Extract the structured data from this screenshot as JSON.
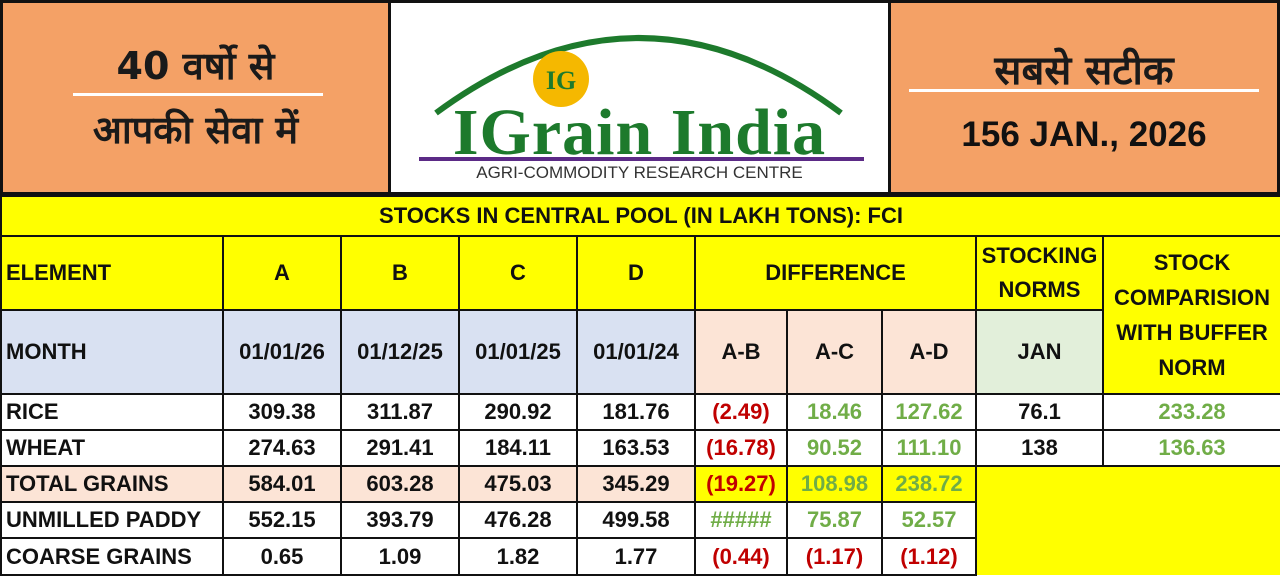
{
  "header": {
    "left_line1": "40 वर्षो से",
    "left_line2": "आपकी सेवा में",
    "right_line1": "सबसे सटीक",
    "edition": "156 JAN., 2026",
    "logo_badge": "IG",
    "logo_title": "IGrain India",
    "logo_subtitle": "AGRI-COMMODITY RESEARCH CENTRE"
  },
  "colors": {
    "orange_panel": "#f4a166",
    "yellow": "#ffff00",
    "light_blue": "#d9e1f2",
    "peach": "#fce4d6",
    "light_green": "#e2efda",
    "red_text": "#c00000",
    "green_text": "#70ad47",
    "logo_green": "#1d7a2c",
    "logo_purple": "#5b2a86"
  },
  "table": {
    "title": "STOCKS IN CENTRAL POOL (IN LAKH TONS): FCI",
    "headers": {
      "element": "ELEMENT",
      "a": "A",
      "b": "B",
      "c": "C",
      "d": "D",
      "difference": "DIFFERENCE",
      "stocking_norms": "STOCKING NORMS",
      "comparison": "STOCK COMPARISION WITH BUFFER NORM"
    },
    "month_row": {
      "label": "MONTH",
      "a": "01/01/26",
      "b": "01/12/25",
      "c": "01/01/25",
      "d": "01/01/24",
      "ab": "A-B",
      "ac": "A-C",
      "ad": "A-D",
      "norm": "JAN"
    },
    "rows": [
      {
        "element": "RICE",
        "a": "309.38",
        "b": "311.87",
        "c": "290.92",
        "d": "181.76",
        "ab": "(2.49)",
        "ac": "18.46",
        "ad": "127.62",
        "norm": "76.1",
        "comparison": "233.28"
      },
      {
        "element": "WHEAT",
        "a": "274.63",
        "b": "291.41",
        "c": "184.11",
        "d": "163.53",
        "ab": "(16.78)",
        "ac": "90.52",
        "ad": "111.10",
        "norm": "138",
        "comparison": "136.63"
      },
      {
        "element": "TOTAL GRAINS",
        "a": "584.01",
        "b": "603.28",
        "c": "475.03",
        "d": "345.29",
        "ab": "(19.27)",
        "ac": "108.98",
        "ad": "238.72"
      },
      {
        "element": "UNMILLED PADDY",
        "a": "552.15",
        "b": "393.79",
        "c": "476.28",
        "d": "499.58",
        "ab": "#####",
        "ac": "75.87",
        "ad": "52.57"
      },
      {
        "element": "COARSE GRAINS",
        "a": "0.65",
        "b": "1.09",
        "c": "1.82",
        "d": "1.77",
        "ab": "(0.44)",
        "ac": "(1.17)",
        "ad": "(1.12)"
      }
    ]
  }
}
